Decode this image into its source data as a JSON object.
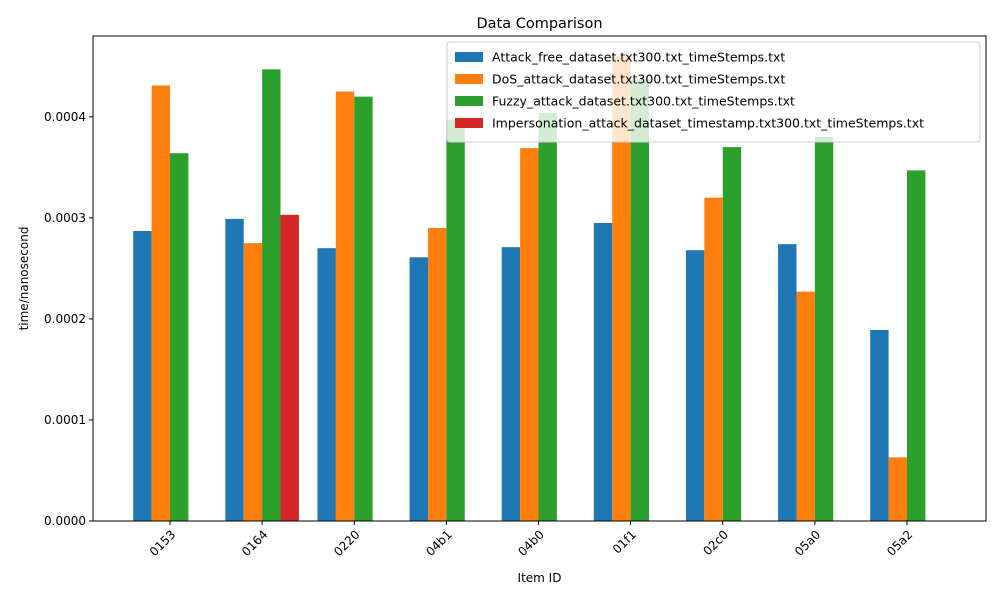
{
  "chart_data": {
    "type": "bar",
    "title": "Data Comparison",
    "xlabel": "Item ID",
    "ylabel": "time/nanosecond",
    "categories": [
      "0153",
      "0164",
      "0220",
      "04b1",
      "04b0",
      "01f1",
      "02c0",
      "05a0",
      "05a2"
    ],
    "series": [
      {
        "name": "Attack_free_dataset.txt300.txt_timeStemps.txt",
        "color": "#1f77b4",
        "values": [
          0.000287,
          0.000299,
          0.00027,
          0.000261,
          0.000271,
          0.000295,
          0.000268,
          0.000274,
          0.000189
        ]
      },
      {
        "name": "DoS_attack_dataset.txt300.txt_timeStemps.txt",
        "color": "#ff7f0e",
        "values": [
          0.000431,
          0.000275,
          0.000425,
          0.00029,
          0.000369,
          0.00046,
          0.00032,
          0.000227,
          6.3e-05
        ]
      },
      {
        "name": "Fuzzy_attack_dataset.txt300.txt_timeStemps.txt",
        "color": "#2ca02c",
        "values": [
          0.000364,
          0.000447,
          0.00042,
          0.000397,
          0.000404,
          0.000437,
          0.00037,
          0.00038,
          0.000347
        ]
      },
      {
        "name": "Impersonation_attack_dataset_timestamp.txt300.txt_timeStemps.txt",
        "color": "#d62728",
        "values": [
          null,
          0.000303,
          null,
          null,
          null,
          null,
          null,
          null,
          null
        ]
      }
    ],
    "yticks": [
      "0.0000",
      "0.0001",
      "0.0002",
      "0.0003",
      "0.0004"
    ],
    "ylim": [
      0,
      0.00048
    ],
    "grid": false,
    "legend_position": "top-right"
  }
}
